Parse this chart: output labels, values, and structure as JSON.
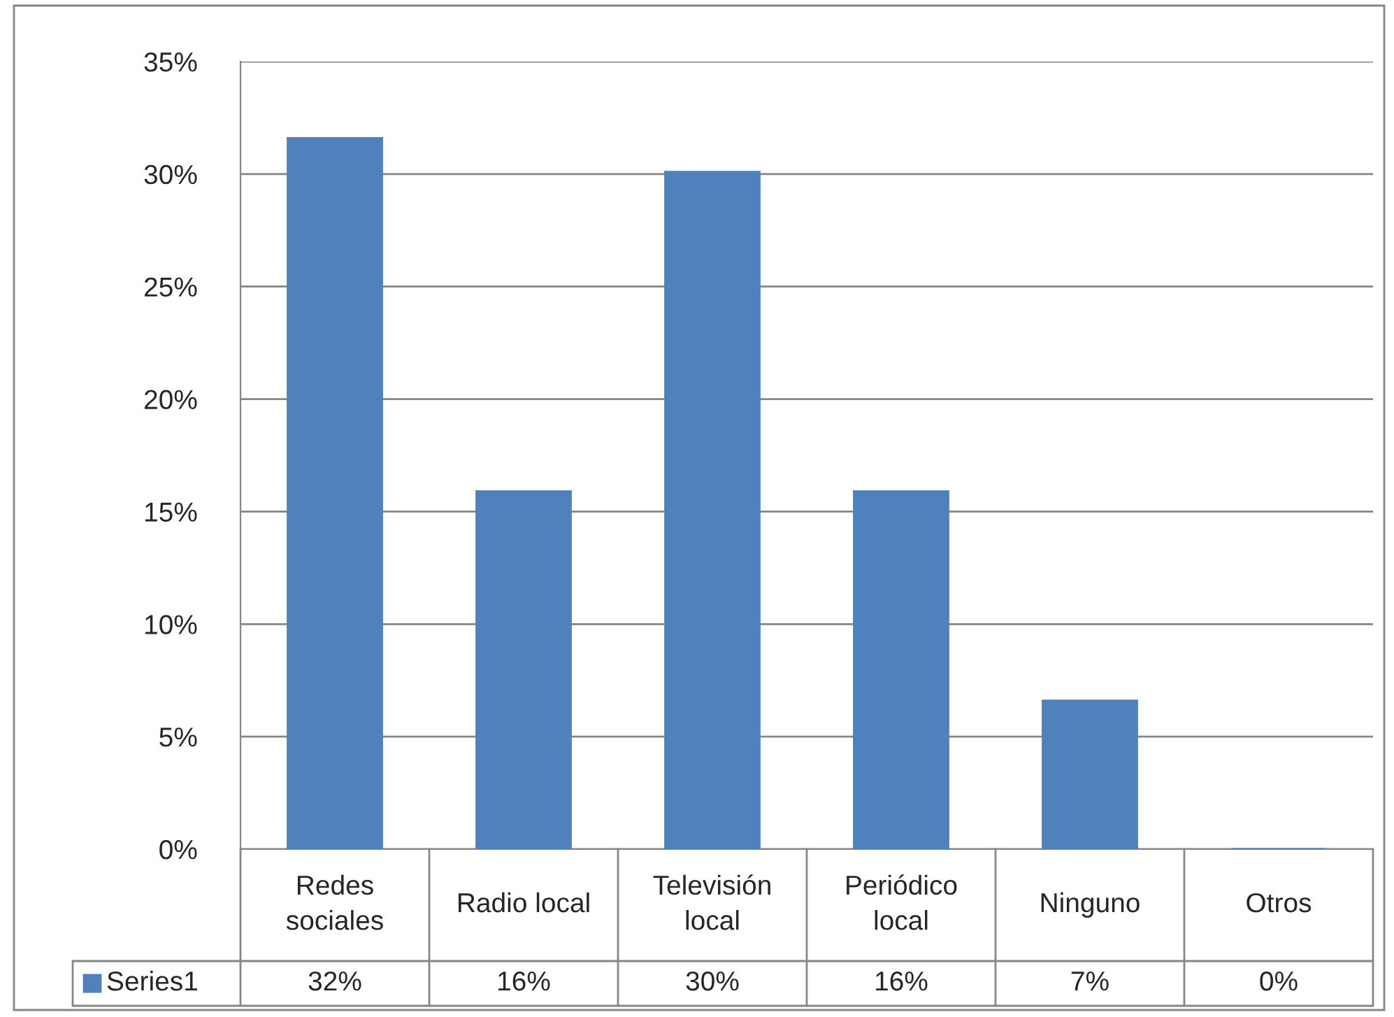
{
  "chart_data": {
    "type": "bar",
    "categories": [
      "Redes sociales",
      "Radio local",
      "Televisión local",
      "Periódico local",
      "Ninguno",
      "Otros"
    ],
    "series": [
      {
        "name": "Series1",
        "color": "#4f81bd",
        "values": [
          31.6,
          15.9,
          30.1,
          15.9,
          6.6,
          0
        ],
        "value_labels": [
          "32%",
          "16%",
          "30%",
          "16%",
          "7%",
          "0%"
        ]
      }
    ],
    "ylim": [
      0,
      35
    ],
    "yticks": [
      {
        "value": 0,
        "label": "0%"
      },
      {
        "value": 5,
        "label": "5%"
      },
      {
        "value": 10,
        "label": "10%"
      },
      {
        "value": 15,
        "label": "15%"
      },
      {
        "value": 20,
        "label": "20%"
      },
      {
        "value": 25,
        "label": "25%"
      },
      {
        "value": 30,
        "label": "30%"
      },
      {
        "value": 35,
        "label": "35%"
      }
    ],
    "grid": "y",
    "legend": "bottom"
  }
}
